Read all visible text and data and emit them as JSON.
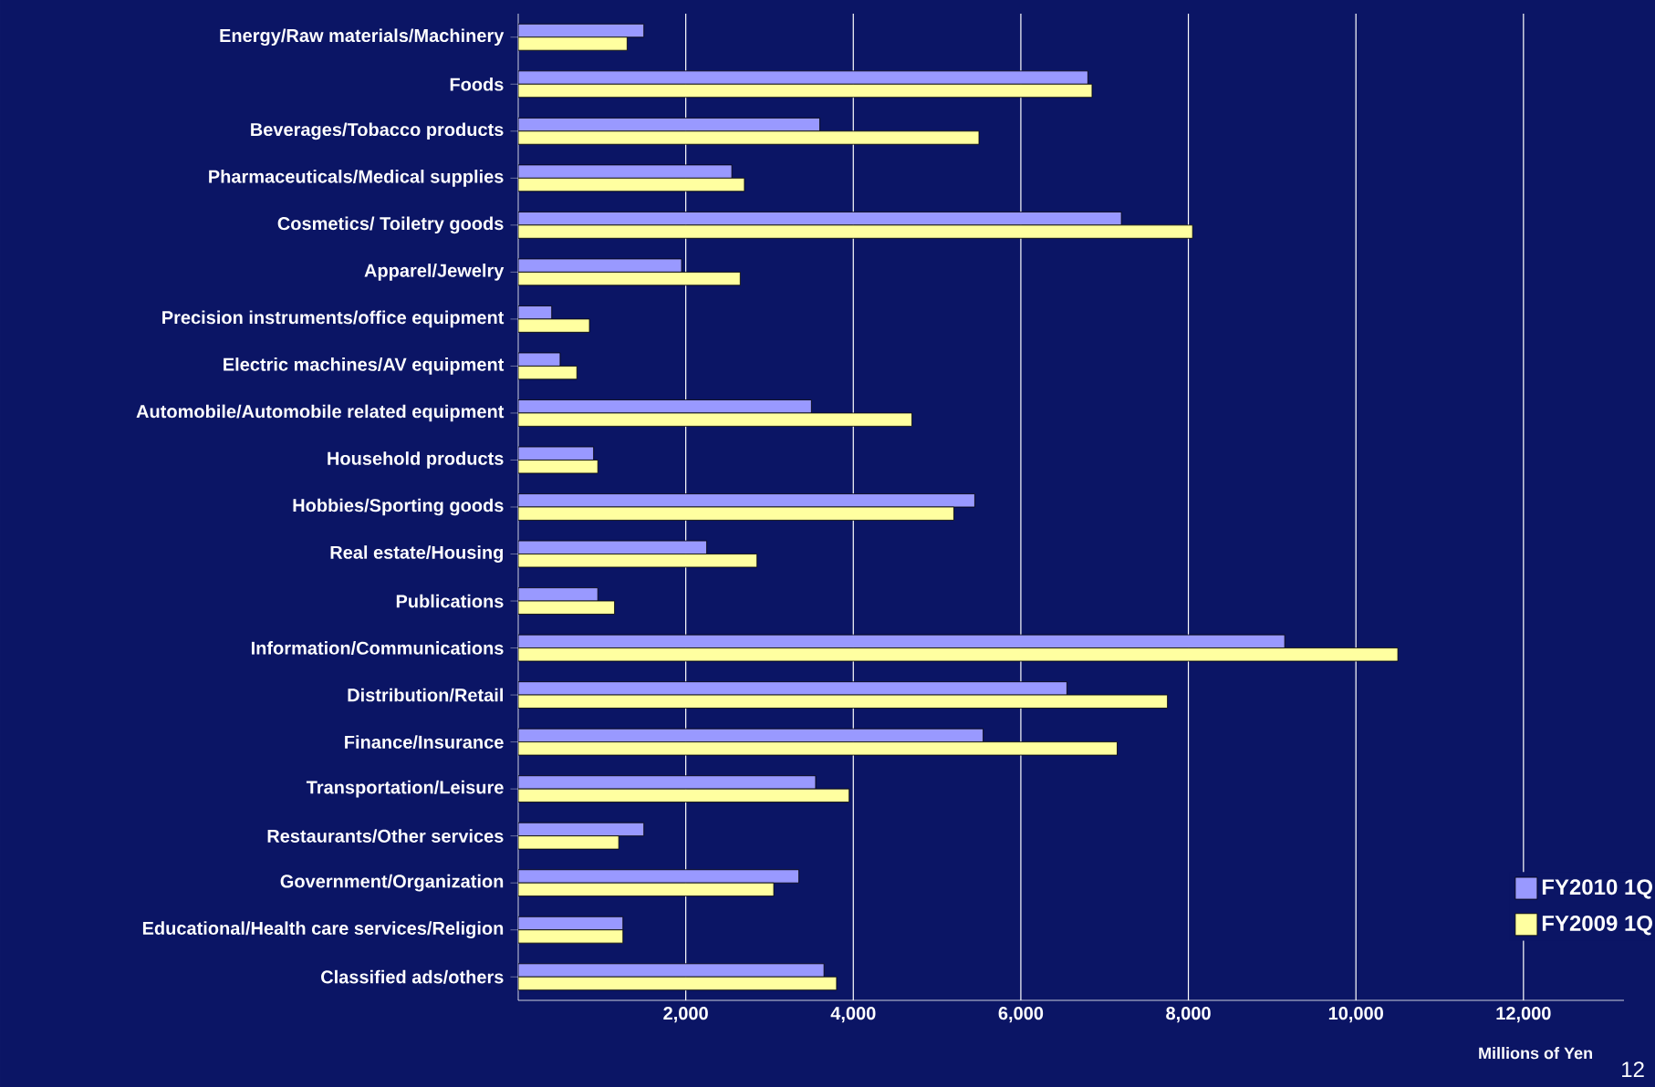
{
  "chart_data": {
    "type": "bar",
    "orientation": "horizontal",
    "categories": [
      "Energy/Raw materials/Machinery",
      "Foods",
      "Beverages/Tobacco products",
      "Pharmaceuticals/Medical supplies",
      "Cosmetics/ Toiletry goods",
      "Apparel/Jewelry",
      "Precision instruments/office equipment",
      "Electric machines/AV equipment",
      "Automobile/Automobile related equipment",
      "Household products",
      "Hobbies/Sporting goods",
      "Real estate/Housing",
      "Publications",
      "Information/Communications",
      "Distribution/Retail",
      "Finance/Insurance",
      "Transportation/Leisure",
      "Restaurants/Other services",
      "Government/Organization",
      "Educational/Health care services/Religion",
      "Classified ads/others"
    ],
    "series": [
      {
        "name": "FY2010 1Q",
        "color": "#9999ff",
        "values": [
          1500,
          6800,
          3600,
          2550,
          7200,
          1950,
          400,
          500,
          3500,
          900,
          5450,
          2250,
          950,
          9150,
          6550,
          5550,
          3550,
          1500,
          3350,
          1250,
          3650
        ]
      },
      {
        "name": "FY2009 1Q",
        "color": "#ffffa0",
        "values": [
          1300,
          6850,
          5500,
          2700,
          8050,
          2650,
          850,
          700,
          4700,
          950,
          5200,
          2850,
          1150,
          10500,
          7750,
          7150,
          3950,
          1200,
          3050,
          1250,
          3800
        ]
      }
    ],
    "xlim": [
      0,
      13200
    ],
    "xticks": [
      {
        "value": 2000,
        "label": "2,000"
      },
      {
        "value": 4000,
        "label": "4,000"
      },
      {
        "value": 6000,
        "label": "6,000"
      },
      {
        "value": 8000,
        "label": "8,000"
      },
      {
        "value": 10000,
        "label": "10,000"
      },
      {
        "value": 12000,
        "label": "12,000"
      }
    ],
    "xlabel": "Millions of Yen",
    "grid": "x",
    "legend": "bottom right",
    "annotations": [
      "12"
    ]
  }
}
